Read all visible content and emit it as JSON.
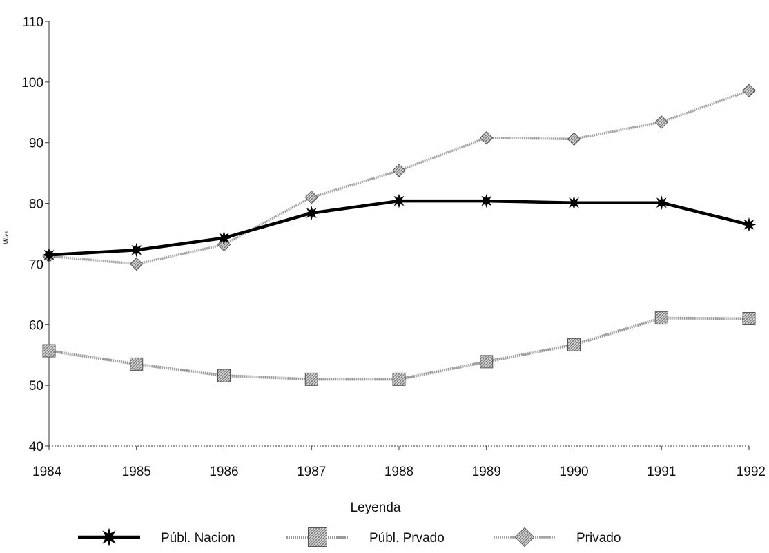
{
  "chart_data": {
    "type": "line",
    "title": "",
    "xlabel": "",
    "ylabel": "Miles",
    "legend_title": "Leyenda",
    "legend_position": "bottom",
    "grid": false,
    "categories": [
      "1984",
      "1985",
      "1986",
      "1987",
      "1988",
      "1989",
      "1990",
      "1991",
      "1992"
    ],
    "ylim": [
      40,
      110
    ],
    "yticks": [
      "40",
      "50",
      "60",
      "70",
      "80",
      "90",
      "100",
      "110"
    ],
    "series": [
      {
        "name": "Públ. Nacion",
        "marker": "star",
        "color": "#000000",
        "values": [
          71.5,
          72.3,
          74.3,
          78.4,
          80.4,
          80.4,
          80.1,
          80.1,
          76.5
        ]
      },
      {
        "name": "Públ. Prvado",
        "marker": "square",
        "color": "#a8a8a8",
        "values": [
          55.7,
          53.5,
          51.6,
          51.0,
          51.0,
          53.9,
          56.7,
          61.1,
          61.0
        ]
      },
      {
        "name": "Privado",
        "marker": "diamond",
        "color": "#b0b0b0",
        "values": [
          71.3,
          70.0,
          73.2,
          81.0,
          85.4,
          90.8,
          90.6,
          93.4,
          98.6
        ]
      }
    ]
  }
}
